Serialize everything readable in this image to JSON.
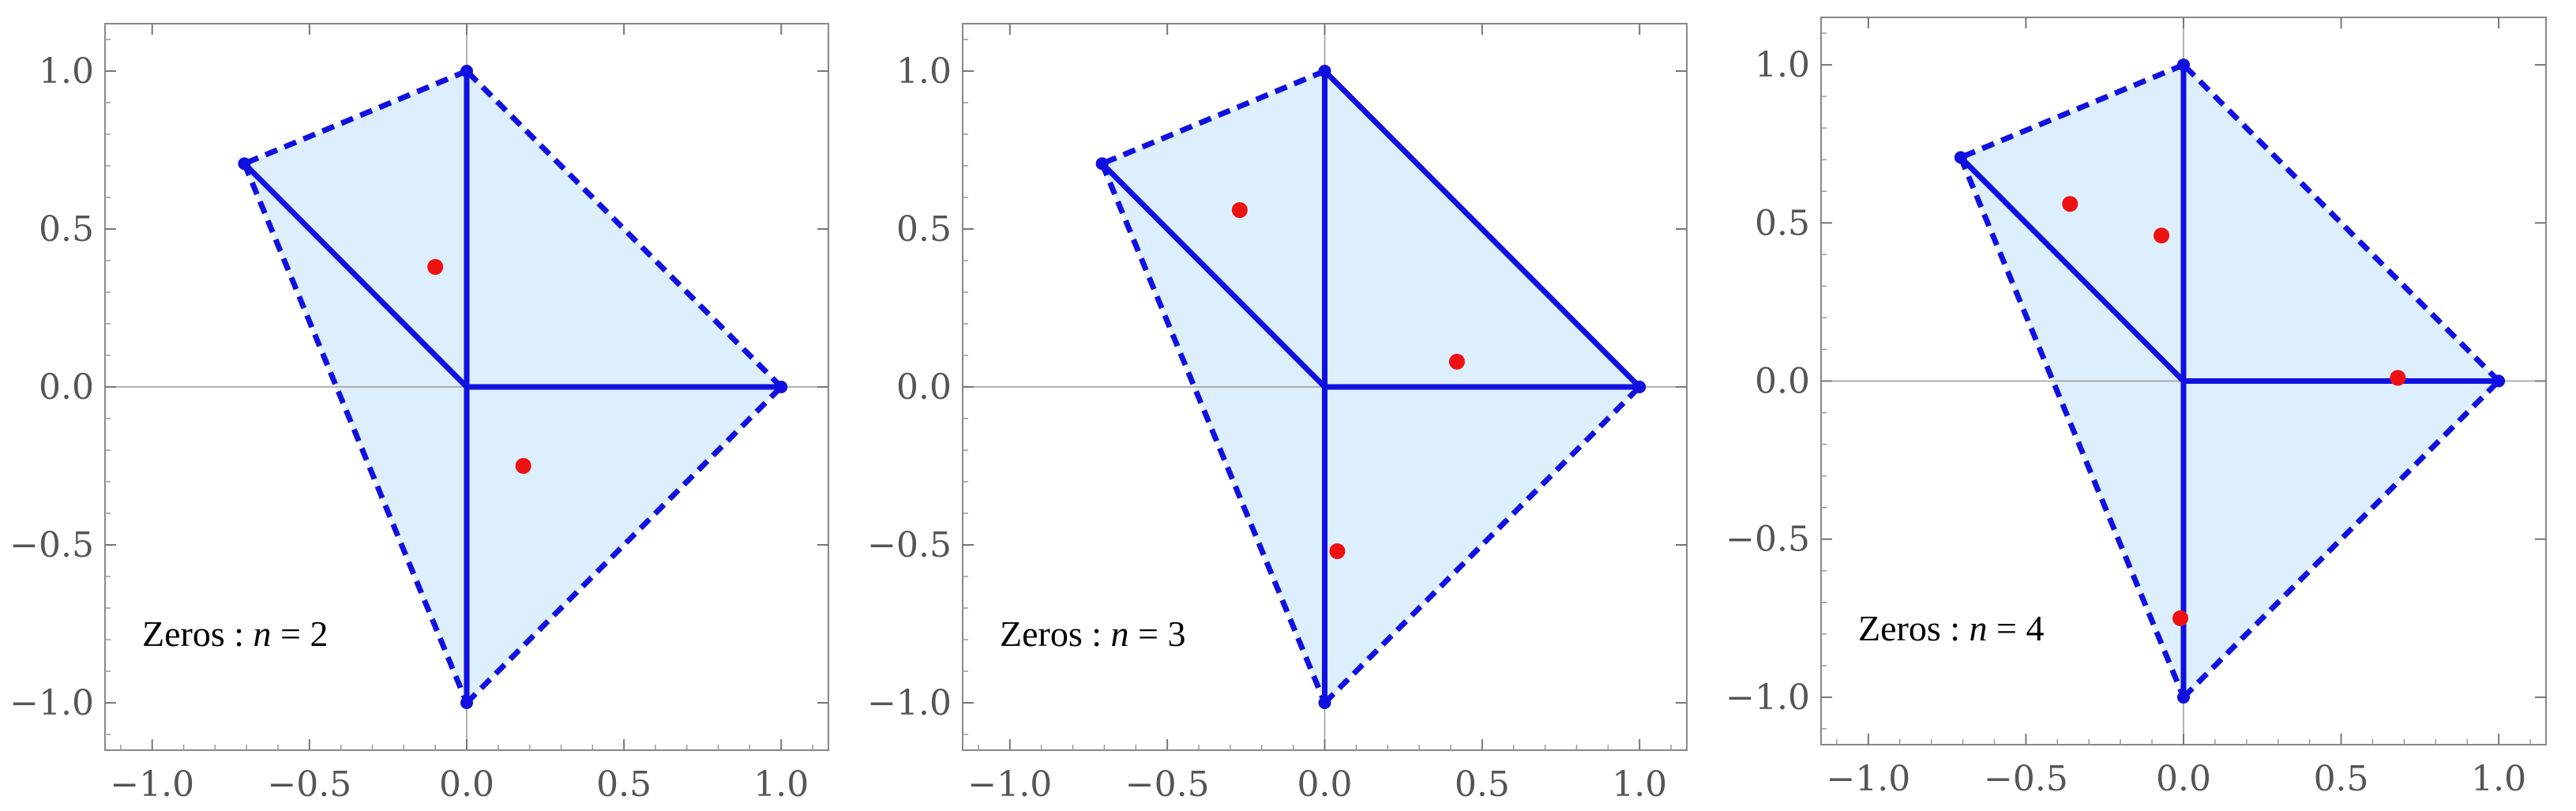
{
  "chart_data": [
    {
      "type": "scatter",
      "annotation": {
        "prefix": "Zeros",
        "colon": " : ",
        "var": "n",
        "eq": " = ",
        "value": "2"
      },
      "xlim": [
        -1.15,
        1.15
      ],
      "ylim": [
        -1.15,
        1.15
      ],
      "xticks": [
        -1.0,
        -0.5,
        0.0,
        0.5,
        1.0
      ],
      "yticks": [
        -1.0,
        -0.5,
        0.0,
        0.5,
        1.0
      ],
      "xtick_labels": [
        "−1.0",
        "−0.5",
        "0.0",
        "0.5",
        "1.0"
      ],
      "ytick_labels": [
        "−1.0",
        "−0.5",
        "0.0",
        "0.5",
        "1.0"
      ],
      "grid": false,
      "polygon_vertices": [
        [
          0,
          1
        ],
        [
          -0.707,
          0.707
        ],
        [
          0,
          -1
        ],
        [
          1,
          0
        ]
      ],
      "polygon_fill": "#ddeefc",
      "dashed_edges": [
        [
          [
            0,
            1
          ],
          [
            -0.707,
            0.707
          ]
        ],
        [
          [
            -0.707,
            0.707
          ],
          [
            0,
            -1
          ]
        ],
        [
          [
            0,
            -1
          ],
          [
            1,
            0
          ]
        ],
        [
          [
            1,
            0
          ],
          [
            0,
            1
          ]
        ]
      ],
      "solid_segments": [
        [
          [
            0,
            0
          ],
          [
            0,
            1
          ]
        ],
        [
          [
            0,
            0
          ],
          [
            -0.707,
            0.707
          ]
        ],
        [
          [
            0,
            0
          ],
          [
            0,
            -1
          ]
        ],
        [
          [
            0,
            0
          ],
          [
            1,
            0
          ]
        ]
      ],
      "edge_color": "#1010e0",
      "zeros": [
        [
          -0.1,
          0.38
        ],
        [
          0.18,
          -0.25
        ]
      ],
      "zero_color": "#ee1111"
    },
    {
      "type": "scatter",
      "annotation": {
        "prefix": "Zeros",
        "colon": " : ",
        "var": "n",
        "eq": " = ",
        "value": "3"
      },
      "xlim": [
        -1.15,
        1.15
      ],
      "ylim": [
        -1.15,
        1.15
      ],
      "xticks": [
        -1.0,
        -0.5,
        0.0,
        0.5,
        1.0
      ],
      "yticks": [
        -1.0,
        -0.5,
        0.0,
        0.5,
        1.0
      ],
      "xtick_labels": [
        "−1.0",
        "−0.5",
        "0.0",
        "0.5",
        "1.0"
      ],
      "ytick_labels": [
        "−1.0",
        "−0.5",
        "0.0",
        "0.5",
        "1.0"
      ],
      "grid": false,
      "polygon_vertices": [
        [
          0,
          1
        ],
        [
          -0.707,
          0.707
        ],
        [
          0,
          -1
        ],
        [
          1,
          0
        ]
      ],
      "polygon_fill": "#ddeefc",
      "dashed_edges": [
        [
          [
            0,
            1
          ],
          [
            -0.707,
            0.707
          ]
        ],
        [
          [
            -0.707,
            0.707
          ],
          [
            0,
            -1
          ]
        ],
        [
          [
            0,
            -1
          ],
          [
            1,
            0
          ]
        ]
      ],
      "solid_segments": [
        [
          [
            0,
            0
          ],
          [
            0,
            1
          ]
        ],
        [
          [
            0,
            0
          ],
          [
            -0.707,
            0.707
          ]
        ],
        [
          [
            0,
            0
          ],
          [
            0,
            -1
          ]
        ],
        [
          [
            0,
            0
          ],
          [
            1,
            0
          ]
        ],
        [
          [
            0,
            1
          ],
          [
            1,
            0
          ]
        ]
      ],
      "edge_color": "#1010e0",
      "zeros": [
        [
          -0.27,
          0.56
        ],
        [
          0.42,
          0.08
        ],
        [
          0.04,
          -0.52
        ]
      ],
      "zero_color": "#ee1111"
    },
    {
      "type": "scatter",
      "annotation": {
        "prefix": "Zeros",
        "colon": " : ",
        "var": "n",
        "eq": " = ",
        "value": "4"
      },
      "xlim": [
        -1.15,
        1.15
      ],
      "ylim": [
        -1.15,
        1.15
      ],
      "xticks": [
        -1.0,
        -0.5,
        0.0,
        0.5,
        1.0
      ],
      "yticks": [
        -1.0,
        -0.5,
        0.0,
        0.5,
        1.0
      ],
      "xtick_labels": [
        "−1.0",
        "−0.5",
        "0.0",
        "0.5",
        "1.0"
      ],
      "ytick_labels": [
        "−1.0",
        "−0.5",
        "0.0",
        "0.5",
        "1.0"
      ],
      "grid": false,
      "polygon_vertices": [
        [
          0,
          1
        ],
        [
          -0.707,
          0.707
        ],
        [
          0,
          -1
        ],
        [
          1,
          0
        ]
      ],
      "polygon_fill": "#ddeefc",
      "dashed_edges": [
        [
          [
            0,
            1
          ],
          [
            -0.707,
            0.707
          ]
        ],
        [
          [
            -0.707,
            0.707
          ],
          [
            0,
            -1
          ]
        ],
        [
          [
            0,
            -1
          ],
          [
            1,
            0
          ]
        ],
        [
          [
            1,
            0
          ],
          [
            0,
            1
          ]
        ]
      ],
      "solid_segments": [
        [
          [
            0,
            0
          ],
          [
            0,
            1
          ]
        ],
        [
          [
            0,
            0
          ],
          [
            -0.707,
            0.707
          ]
        ],
        [
          [
            0,
            0
          ],
          [
            0,
            -1
          ]
        ],
        [
          [
            0,
            0
          ],
          [
            1,
            0
          ]
        ]
      ],
      "edge_color": "#1010e0",
      "zeros": [
        [
          -0.36,
          0.56
        ],
        [
          -0.07,
          0.46
        ],
        [
          0.68,
          0.01
        ],
        [
          -0.01,
          -0.75
        ]
      ],
      "zero_color": "#ee1111"
    }
  ]
}
